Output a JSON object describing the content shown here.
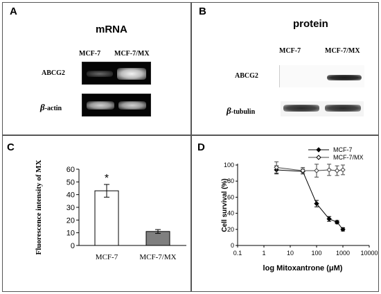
{
  "panelA": {
    "label": "A",
    "title": "mRNA",
    "col1": "MCF-7",
    "col2": "MCF-7/MX",
    "row1": "ABCG2",
    "row2_symbol": "β",
    "row2_text": "-actin"
  },
  "panelB": {
    "label": "B",
    "title": "protein",
    "col1": "MCF-7",
    "col2": "MCF-7/MX",
    "row1": "ABCG2",
    "row2_symbol": "β",
    "row2_text": "-tubulin"
  },
  "chart_data": [
    {
      "type": "bar",
      "panel": "C",
      "categories": [
        "MCF-7",
        "MCF-7/MX"
      ],
      "values": [
        43,
        11
      ],
      "errors": [
        5,
        1.5
      ],
      "colors": [
        "#ffffff",
        "#7f7f7f"
      ],
      "annotation": "*",
      "ylabel": "Fluorescence intensity of MX",
      "ylim": [
        0,
        60
      ],
      "yticks": [
        "0",
        "10",
        "20",
        "30",
        "40",
        "50",
        "60"
      ],
      "grid": false
    },
    {
      "type": "line",
      "panel": "D",
      "xscale": "log",
      "xlim": [
        0.1,
        10000
      ],
      "ylim": [
        0,
        100
      ],
      "xticks": [
        "0.1",
        "1",
        "10",
        "100",
        "1000",
        "10000"
      ],
      "yticks": [
        "0",
        "20",
        "40",
        "60",
        "80",
        "100"
      ],
      "xlabel": "log Mitoxantrone (μM)",
      "ylabel": "Cell survival (%)",
      "legend": "top-right",
      "grid": false,
      "series": [
        {
          "name": "MCF-7",
          "marker": "filled-diamond",
          "x": [
            3,
            30,
            100,
            300,
            600,
            1000
          ],
          "y": [
            94,
            92,
            52,
            33,
            29,
            20
          ],
          "err": [
            5,
            3,
            4,
            3,
            2,
            2
          ]
        },
        {
          "name": "MCF-7/MX",
          "marker": "open-diamond",
          "x": [
            3,
            30,
            100,
            300,
            600,
            1000
          ],
          "y": [
            97,
            93,
            93,
            94,
            93,
            94
          ],
          "err": [
            7,
            4,
            8,
            7,
            6,
            6
          ]
        }
      ]
    }
  ]
}
